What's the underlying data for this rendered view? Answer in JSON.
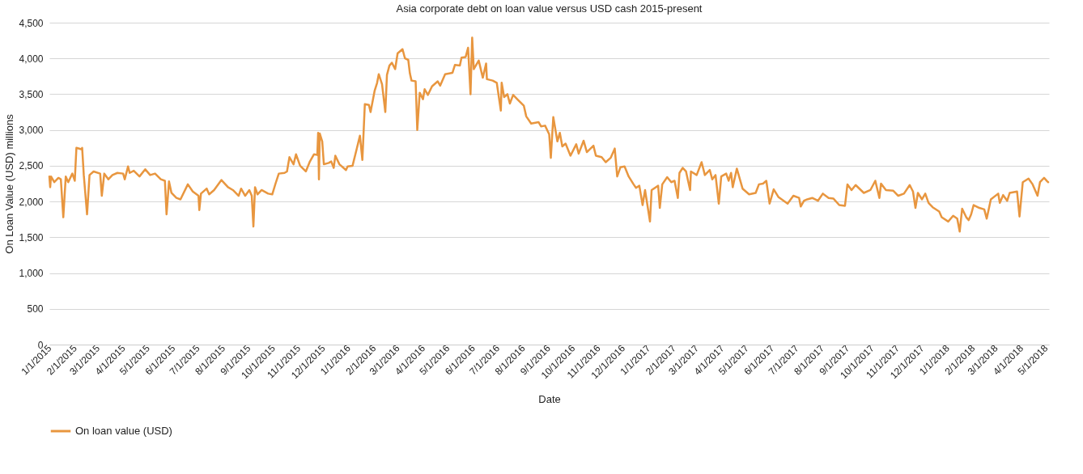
{
  "chart_data": {
    "type": "line",
    "title": "Asia corporate debt on loan value versus USD cash 2015-present",
    "xlabel": "Date",
    "ylabel": "On Loan Value (USD) millions",
    "x": [
      "2015-01-01",
      "2015-01-02",
      "2015-01-03",
      "2015-01-07",
      "2015-01-12",
      "2015-01-15",
      "2015-01-18",
      "2015-01-21",
      "2015-01-24",
      "2015-01-29",
      "2015-02-01",
      "2015-02-03",
      "2015-02-09",
      "2015-02-10",
      "2015-02-12",
      "2015-02-16",
      "2015-02-19",
      "2015-02-24",
      "2015-03-04",
      "2015-03-06",
      "2015-03-09",
      "2015-03-14",
      "2015-03-19",
      "2015-03-25",
      "2015-04-01",
      "2015-04-03",
      "2015-04-07",
      "2015-04-09",
      "2015-04-14",
      "2015-04-21",
      "2015-04-28",
      "2015-05-04",
      "2015-05-10",
      "2015-05-17",
      "2015-05-22",
      "2015-05-24",
      "2015-05-27",
      "2015-05-30",
      "2015-06-05",
      "2015-06-10",
      "2015-06-19",
      "2015-06-25",
      "2015-07-02",
      "2015-07-03",
      "2015-07-05",
      "2015-07-12",
      "2015-07-15",
      "2015-07-21",
      "2015-07-30",
      "2015-08-07",
      "2015-08-13",
      "2015-08-20",
      "2015-08-23",
      "2015-08-28",
      "2015-09-02",
      "2015-09-05",
      "2015-09-07",
      "2015-09-09",
      "2015-09-12",
      "2015-09-17",
      "2015-09-25",
      "2015-09-30",
      "2015-10-04",
      "2015-10-08",
      "2015-10-15",
      "2015-10-18",
      "2015-10-21",
      "2015-10-26",
      "2015-10-29",
      "2015-11-03",
      "2015-11-10",
      "2015-11-15",
      "2015-11-20",
      "2015-11-24",
      "2015-11-25",
      "2015-11-26",
      "2015-11-27",
      "2015-11-30",
      "2015-12-02",
      "2015-12-08",
      "2015-12-11",
      "2015-12-14",
      "2015-12-16",
      "2015-12-21",
      "2015-12-29",
      "2015-12-31",
      "2016-01-06",
      "2016-01-11",
      "2016-01-15",
      "2016-01-18",
      "2016-01-21",
      "2016-01-26",
      "2016-01-28",
      "2016-02-02",
      "2016-02-05",
      "2016-02-07",
      "2016-02-11",
      "2016-02-15",
      "2016-02-17",
      "2016-02-20",
      "2016-02-23",
      "2016-02-27",
      "2016-03-01",
      "2016-03-07",
      "2016-03-10",
      "2016-03-14",
      "2016-03-16",
      "2016-03-18",
      "2016-03-23",
      "2016-03-25",
      "2016-03-28",
      "2016-04-01",
      "2016-04-03",
      "2016-04-07",
      "2016-04-12",
      "2016-04-19",
      "2016-04-22",
      "2016-04-28",
      "2016-05-07",
      "2016-05-10",
      "2016-05-16",
      "2016-05-18",
      "2016-05-23",
      "2016-05-26",
      "2016-05-29",
      "2016-05-31",
      "2016-06-02",
      "2016-06-08",
      "2016-06-13",
      "2016-06-17",
      "2016-06-18",
      "2016-06-25",
      "2016-06-30",
      "2016-07-05",
      "2016-07-06",
      "2016-07-09",
      "2016-07-13",
      "2016-07-16",
      "2016-07-20",
      "2016-07-26",
      "2016-08-02",
      "2016-08-05",
      "2016-08-11",
      "2016-08-20",
      "2016-08-23",
      "2016-08-28",
      "2016-09-02",
      "2016-09-04",
      "2016-09-07",
      "2016-09-12",
      "2016-09-15",
      "2016-09-18",
      "2016-09-22",
      "2016-09-28",
      "2016-10-05",
      "2016-10-08",
      "2016-10-14",
      "2016-10-18",
      "2016-10-26",
      "2016-10-29",
      "2016-11-05",
      "2016-11-10",
      "2016-11-16",
      "2016-11-21",
      "2016-11-24",
      "2016-11-28",
      "2016-12-03",
      "2016-12-08",
      "2016-12-14",
      "2016-12-17",
      "2016-12-21",
      "2016-12-25",
      "2016-12-28",
      "2017-01-03",
      "2017-01-05",
      "2017-01-13",
      "2017-01-15",
      "2017-01-18",
      "2017-01-24",
      "2017-01-29",
      "2017-02-02",
      "2017-02-06",
      "2017-02-08",
      "2017-02-12",
      "2017-02-16",
      "2017-02-21",
      "2017-02-22",
      "2017-03-01",
      "2017-03-07",
      "2017-03-11",
      "2017-03-17",
      "2017-03-20",
      "2017-03-24",
      "2017-03-28",
      "2017-03-31",
      "2017-04-06",
      "2017-04-09",
      "2017-04-12",
      "2017-04-14",
      "2017-04-19",
      "2017-04-26",
      "2017-05-04",
      "2017-05-12",
      "2017-05-16",
      "2017-05-21",
      "2017-05-25",
      "2017-05-29",
      "2017-06-03",
      "2017-06-09",
      "2017-06-20",
      "2017-06-27",
      "2017-07-04",
      "2017-07-06",
      "2017-07-10",
      "2017-07-14",
      "2017-07-20",
      "2017-07-27",
      "2017-08-02",
      "2017-08-09",
      "2017-08-15",
      "2017-08-22",
      "2017-08-29",
      "2017-09-01",
      "2017-09-06",
      "2017-09-11",
      "2017-09-21",
      "2017-09-29",
      "2017-10-05",
      "2017-10-10",
      "2017-10-12",
      "2017-10-18",
      "2017-10-27",
      "2017-11-02",
      "2017-11-09",
      "2017-11-16",
      "2017-11-20",
      "2017-11-23",
      "2017-11-26",
      "2017-12-01",
      "2017-12-05",
      "2017-12-09",
      "2017-12-14",
      "2017-12-22",
      "2017-12-25",
      "2018-01-02",
      "2018-01-08",
      "2018-01-13",
      "2018-01-16",
      "2018-01-19",
      "2018-01-24",
      "2018-01-27",
      "2018-01-30",
      "2018-02-02",
      "2018-02-09",
      "2018-02-15",
      "2018-02-18",
      "2018-02-23",
      "2018-03-04",
      "2018-03-06",
      "2018-03-10",
      "2018-03-15",
      "2018-03-18",
      "2018-03-27",
      "2018-03-30",
      "2018-04-03",
      "2018-04-10",
      "2018-04-15",
      "2018-04-21",
      "2018-04-24",
      "2018-04-29",
      "2018-05-03",
      "2018-05-04"
    ],
    "series": [
      {
        "name": "On loan value (USD)",
        "color": "#e8963f",
        "values": [
          2350,
          2200,
          2350,
          2270,
          2330,
          2310,
          1780,
          2350,
          2270,
          2390,
          2290,
          2750,
          2730,
          2750,
          2370,
          1820,
          2370,
          2420,
          2390,
          2080,
          2390,
          2310,
          2370,
          2400,
          2390,
          2310,
          2490,
          2400,
          2430,
          2350,
          2450,
          2370,
          2390,
          2310,
          2290,
          1820,
          2280,
          2120,
          2050,
          2030,
          2240,
          2140,
          2080,
          1880,
          2110,
          2180,
          2100,
          2160,
          2300,
          2200,
          2160,
          2080,
          2180,
          2080,
          2160,
          2080,
          1650,
          2200,
          2100,
          2160,
          2110,
          2100,
          2250,
          2390,
          2400,
          2420,
          2620,
          2520,
          2660,
          2500,
          2420,
          2560,
          2660,
          2650,
          2960,
          2310,
          2950,
          2840,
          2520,
          2540,
          2560,
          2470,
          2640,
          2520,
          2440,
          2490,
          2500,
          2730,
          2920,
          2580,
          3360,
          3350,
          3250,
          3550,
          3660,
          3780,
          3640,
          3250,
          3770,
          3900,
          3940,
          3850,
          4070,
          4130,
          4000,
          3980,
          3790,
          3690,
          3680,
          3000,
          3520,
          3430,
          3570,
          3490,
          3610,
          3680,
          3620,
          3780,
          3800,
          3910,
          3900,
          4010,
          4020,
          4150,
          3500,
          4290,
          3850,
          3970,
          3730,
          3930,
          3710,
          3690,
          3660,
          3270,
          3660,
          3460,
          3500,
          3370,
          3490,
          3420,
          3340,
          3190,
          3090,
          3110,
          3050,
          3060,
          2940,
          2610,
          3180,
          2840,
          2960,
          2770,
          2810,
          2640,
          2800,
          2670,
          2850,
          2690,
          2780,
          2640,
          2620,
          2550,
          2610,
          2740,
          2350,
          2480,
          2490,
          2350,
          2240,
          2190,
          2220,
          1950,
          2160,
          1720,
          2160,
          2220,
          1910,
          2240,
          2340,
          2270,
          2290,
          2050,
          2400,
          2470,
          2420,
          2160,
          2420,
          2370,
          2550,
          2370,
          2440,
          2310,
          2370,
          1970,
          2350,
          2390,
          2290,
          2400,
          2200,
          2460,
          2180,
          2100,
          2120,
          2240,
          2250,
          2290,
          1970,
          2170,
          2060,
          1970,
          2080,
          2050,
          1930,
          2010,
          2030,
          2050,
          2010,
          2110,
          2050,
          2040,
          1950,
          1940,
          2240,
          2160,
          2230,
          2120,
          2160,
          2290,
          2050,
          2250,
          2160,
          2150,
          2080,
          2110,
          2230,
          2140,
          1910,
          2120,
          2030,
          2110,
          1980,
          1920,
          1860,
          1780,
          1720,
          1800,
          1760,
          1580,
          1900,
          1780,
          1740,
          1820,
          1950,
          1910,
          1890,
          1760,
          2030,
          2110,
          1980,
          2090,
          2010,
          2120,
          2140,
          1790,
          2270,
          2320,
          2240,
          2080,
          2270,
          2330,
          2280,
          2270
        ]
      }
    ],
    "xlim": [
      "2015-01-01",
      "2018-05-05"
    ],
    "xticks": [
      {
        "value": "2015-01-01",
        "label": "1/1/2015"
      },
      {
        "value": "2015-02-01",
        "label": "2/1/2015"
      },
      {
        "value": "2015-03-01",
        "label": "3/1/2015"
      },
      {
        "value": "2015-04-01",
        "label": "4/1/2015"
      },
      {
        "value": "2015-05-01",
        "label": "5/1/2015"
      },
      {
        "value": "2015-06-01",
        "label": "6/1/2015"
      },
      {
        "value": "2015-07-01",
        "label": "7/1/2015"
      },
      {
        "value": "2015-08-01",
        "label": "8/1/2015"
      },
      {
        "value": "2015-09-01",
        "label": "9/1/2015"
      },
      {
        "value": "2015-10-01",
        "label": "10/1/2015"
      },
      {
        "value": "2015-11-01",
        "label": "11/1/2015"
      },
      {
        "value": "2015-12-01",
        "label": "12/1/2015"
      },
      {
        "value": "2016-01-01",
        "label": "1/1/2016"
      },
      {
        "value": "2016-02-01",
        "label": "2/1/2016"
      },
      {
        "value": "2016-03-01",
        "label": "3/1/2016"
      },
      {
        "value": "2016-04-01",
        "label": "4/1/2016"
      },
      {
        "value": "2016-05-01",
        "label": "5/1/2016"
      },
      {
        "value": "2016-06-01",
        "label": "6/1/2016"
      },
      {
        "value": "2016-07-01",
        "label": "7/1/2016"
      },
      {
        "value": "2016-08-01",
        "label": "8/1/2016"
      },
      {
        "value": "2016-09-01",
        "label": "9/1/2016"
      },
      {
        "value": "2016-10-01",
        "label": "10/1/2016"
      },
      {
        "value": "2016-11-01",
        "label": "11/1/2016"
      },
      {
        "value": "2016-12-01",
        "label": "12/1/2016"
      },
      {
        "value": "2017-01-01",
        "label": "1/1/2017"
      },
      {
        "value": "2017-02-01",
        "label": "2/1/2017"
      },
      {
        "value": "2017-03-01",
        "label": "3/1/2017"
      },
      {
        "value": "2017-04-01",
        "label": "4/1/2017"
      },
      {
        "value": "2017-05-01",
        "label": "5/1/2017"
      },
      {
        "value": "2017-06-01",
        "label": "6/1/2017"
      },
      {
        "value": "2017-07-01",
        "label": "7/1/2017"
      },
      {
        "value": "2017-08-01",
        "label": "8/1/2017"
      },
      {
        "value": "2017-09-01",
        "label": "9/1/2017"
      },
      {
        "value": "2017-10-01",
        "label": "10/1/2017"
      },
      {
        "value": "2017-11-01",
        "label": "11/1/2017"
      },
      {
        "value": "2017-12-01",
        "label": "12/1/2017"
      },
      {
        "value": "2018-01-01",
        "label": "1/1/2018"
      },
      {
        "value": "2018-02-01",
        "label": "2/1/2018"
      },
      {
        "value": "2018-03-01",
        "label": "3/1/2018"
      },
      {
        "value": "2018-04-01",
        "label": "4/1/2018"
      },
      {
        "value": "2018-05-01",
        "label": "5/1/2018"
      }
    ],
    "ylim": [
      0,
      4500
    ],
    "yticks": [
      0,
      500,
      {
        "value": 1000,
        "label": "1,000"
      },
      {
        "value": 1500,
        "label": "1,500"
      },
      {
        "value": 2000,
        "label": "2,000"
      },
      {
        "value": 2500,
        "label": "2,500"
      },
      {
        "value": 3000,
        "label": "3,000"
      },
      {
        "value": 3500,
        "label": "3,500"
      },
      {
        "value": 4000,
        "label": "4,000"
      },
      {
        "value": 4500,
        "label": "4,500"
      }
    ],
    "grid": "y",
    "legend": "bottom"
  }
}
